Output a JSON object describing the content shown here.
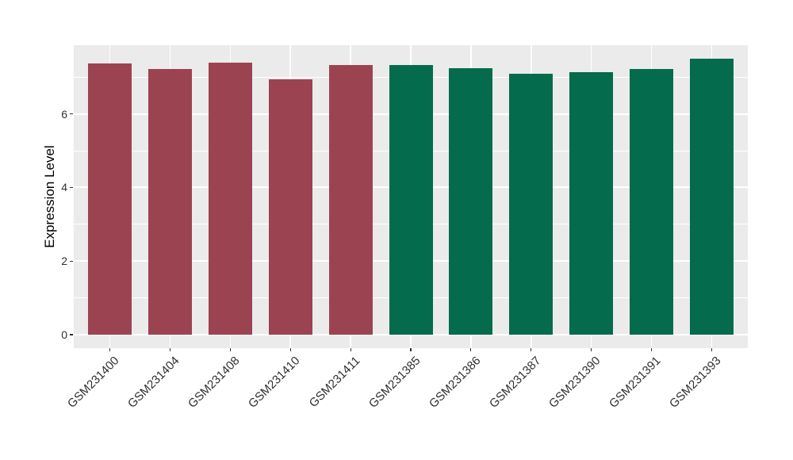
{
  "chart_data": {
    "type": "bar",
    "title": "",
    "xlabel": "",
    "ylabel": "Expression Level",
    "categories": [
      "GSM231400",
      "GSM231404",
      "GSM231408",
      "GSM231410",
      "GSM231411",
      "GSM231385",
      "GSM231386",
      "GSM231387",
      "GSM231390",
      "GSM231391",
      "GSM231393"
    ],
    "values": [
      7.38,
      7.21,
      7.4,
      6.95,
      7.32,
      7.33,
      7.25,
      7.09,
      7.14,
      7.23,
      7.51
    ],
    "groups": [
      "group-1",
      "group-1",
      "group-1",
      "group-1",
      "group-1",
      "group-2",
      "group-2",
      "group-2",
      "group-2",
      "group-2",
      "group-2"
    ],
    "group_colors": {
      "group-1": "#9C4351",
      "group-2": "#046B4C"
    },
    "yticks": [
      0,
      2,
      4,
      6
    ],
    "yticks_minor": [
      1,
      3,
      5,
      7
    ],
    "ylim": [
      0,
      7.87
    ],
    "grid": true,
    "legend": "none",
    "panel_bg": "#EBEBEB",
    "grid_color": "#FFFFFF",
    "tick_color": "#333333",
    "tick_label_color": "#303030",
    "axis_title_color": "#000000"
  }
}
